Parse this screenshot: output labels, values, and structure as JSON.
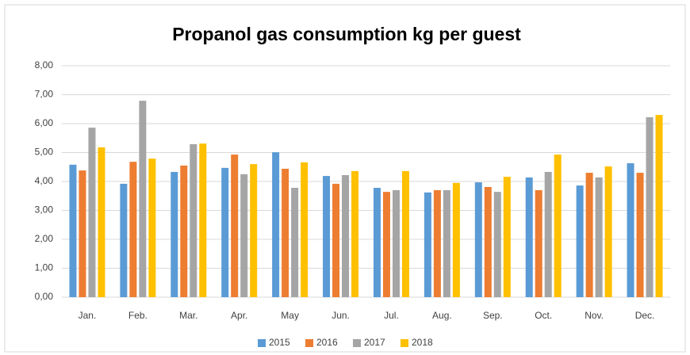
{
  "chart_data": {
    "type": "bar",
    "title": "Propanol gas consumption kg per guest",
    "categories": [
      "Jan.",
      "Feb.",
      "Mar.",
      "Apr.",
      "May",
      "Jun.",
      "Jul.",
      "Aug.",
      "Sep.",
      "Oct.",
      "Nov.",
      "Dec."
    ],
    "series": [
      {
        "name": "2015",
        "color": "#5b9bd5",
        "values": [
          4.58,
          3.92,
          4.33,
          4.47,
          5.01,
          4.19,
          3.78,
          3.62,
          3.97,
          4.14,
          3.86,
          4.63
        ]
      },
      {
        "name": "2016",
        "color": "#ed7d31",
        "values": [
          4.38,
          4.68,
          4.55,
          4.93,
          4.44,
          3.92,
          3.64,
          3.7,
          3.81,
          3.7,
          4.3,
          4.3
        ]
      },
      {
        "name": "2017",
        "color": "#a5a5a5",
        "values": [
          5.86,
          6.79,
          5.29,
          4.25,
          3.78,
          4.22,
          3.7,
          3.7,
          3.64,
          4.33,
          4.14,
          6.22
        ]
      },
      {
        "name": "2018",
        "color": "#ffc000",
        "values": [
          5.18,
          4.79,
          5.31,
          4.6,
          4.66,
          4.36,
          4.36,
          3.95,
          4.16,
          4.93,
          4.52,
          6.3
        ]
      }
    ],
    "ylim": [
      0,
      8
    ],
    "yticks": [
      {
        "value": 0,
        "label": "0,00"
      },
      {
        "value": 1,
        "label": "1,00"
      },
      {
        "value": 2,
        "label": "2,00"
      },
      {
        "value": 3,
        "label": "3,00"
      },
      {
        "value": 4,
        "label": "4,00"
      },
      {
        "value": 5,
        "label": "5,00"
      },
      {
        "value": 6,
        "label": "6,00"
      },
      {
        "value": 7,
        "label": "7,00"
      },
      {
        "value": 8,
        "label": "8,00"
      }
    ],
    "grid": true,
    "legend": "bottom"
  }
}
